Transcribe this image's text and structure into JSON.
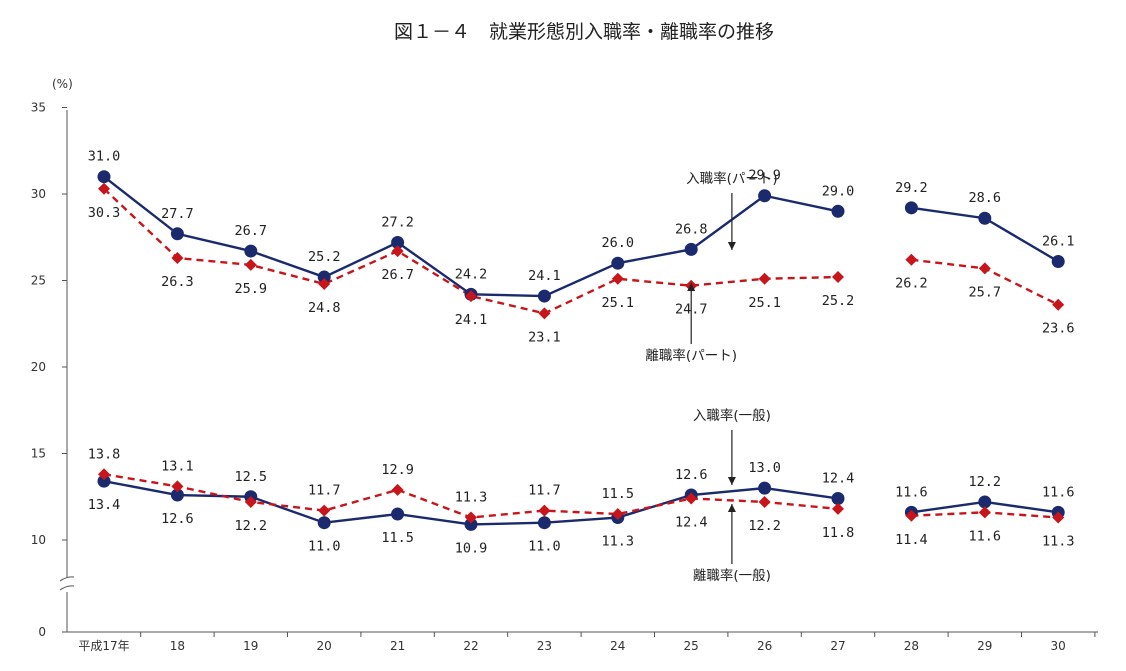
{
  "chart_data": {
    "type": "line",
    "title": "図１－４　就業形態別入職率・離職率の推移",
    "unit": "(%)",
    "ylim": [
      0,
      35
    ],
    "yticks": [
      "0",
      "10",
      "15",
      "20",
      "25",
      "30",
      "35"
    ],
    "axis_break": true,
    "grid": false,
    "categories": [
      "平成17年",
      "18",
      "19",
      "20",
      "21",
      "22",
      "23",
      "24",
      "25",
      "26",
      "27",
      "28",
      "29",
      "30"
    ],
    "series": [
      {
        "name": "入職率（パート）",
        "color": "#1a2a6c",
        "style": "solid",
        "marker": "circle",
        "values": [
          31.0,
          27.7,
          26.7,
          25.2,
          27.2,
          24.2,
          24.1,
          26.0,
          26.8,
          29.9,
          29.0,
          29.2,
          28.6,
          26.1
        ],
        "labels": [
          "31.0",
          "27.7",
          "26.7",
          "25.2",
          "27.2",
          "24.2",
          "24.1",
          "26.0",
          "26.8",
          "29.9",
          "29.0",
          "29.2",
          "28.6",
          "26.1"
        ]
      },
      {
        "name": "離職率（パート）",
        "color": "#c8151b",
        "style": "dashed",
        "marker": "diamond",
        "values": [
          30.3,
          26.3,
          25.9,
          24.8,
          26.7,
          24.1,
          23.1,
          25.1,
          24.7,
          25.1,
          25.2,
          26.2,
          25.7,
          23.6
        ],
        "labels": [
          "30.3",
          "26.3",
          "25.9",
          "24.8",
          "26.7",
          "24.1",
          "23.1",
          "25.1",
          "24.7",
          "25.1",
          "25.2",
          "26.2",
          "25.7",
          "23.6"
        ]
      },
      {
        "name": "入職率（一般）",
        "color": "#1a2a6c",
        "style": "solid",
        "marker": "circle",
        "values": [
          13.4,
          12.6,
          12.5,
          11.0,
          11.5,
          10.9,
          11.0,
          11.3,
          12.6,
          13.0,
          12.4,
          11.6,
          12.2,
          11.6
        ],
        "labels": [
          "13.4",
          "12.6",
          "12.5",
          "11.0",
          "11.5",
          "10.9",
          "11.0",
          "11.3",
          "12.6",
          "13.0",
          "12.4",
          "11.6",
          "12.2",
          "11.6"
        ]
      },
      {
        "name": "離職率（一般）",
        "color": "#c8151b",
        "style": "dashed",
        "marker": "diamond",
        "values": [
          13.8,
          13.1,
          12.2,
          11.7,
          12.9,
          11.3,
          11.7,
          11.5,
          12.4,
          12.2,
          11.8,
          11.4,
          11.6,
          11.3
        ],
        "labels": [
          "13.8",
          "13.1",
          "12.2",
          "11.7",
          "12.9",
          "11.3",
          "11.7",
          "11.5",
          "12.4",
          "12.2",
          "11.8",
          "11.4",
          "11.6",
          "11.3"
        ]
      }
    ],
    "gap_after_category": "27",
    "annotations": [
      {
        "text": "入職率(パート)",
        "series": 0,
        "category": "26",
        "arrow": "down"
      },
      {
        "text": "離職率(パート)",
        "series": 1,
        "category": "25",
        "arrow": "up"
      },
      {
        "text": "入職率(一般)",
        "series": 2,
        "category": "26",
        "arrow": "down"
      },
      {
        "text": "離職率(一般)",
        "series": 3,
        "category": "26",
        "arrow": "up"
      }
    ]
  }
}
